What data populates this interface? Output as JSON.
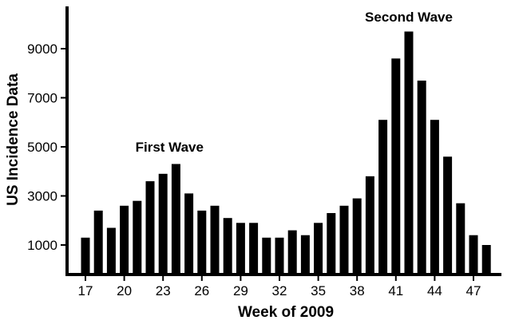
{
  "chart_data": {
    "type": "bar",
    "xlabel": "Week of 2009",
    "ylabel": "US Incidence Data",
    "x": [
      17,
      18,
      19,
      20,
      21,
      22,
      23,
      24,
      25,
      26,
      27,
      28,
      29,
      30,
      31,
      32,
      33,
      34,
      35,
      36,
      37,
      38,
      39,
      40,
      41,
      42,
      43,
      44,
      45,
      46,
      47,
      48
    ],
    "x_ticks": [
      17,
      20,
      23,
      26,
      29,
      32,
      35,
      38,
      41,
      44,
      47
    ],
    "y_ticks": [
      1000,
      3000,
      5000,
      7000,
      9000
    ],
    "ylim": [
      0,
      10600
    ],
    "values": [
      1300,
      2400,
      1700,
      2600,
      2800,
      3600,
      3900,
      4300,
      3100,
      2400,
      2600,
      2100,
      1900,
      1900,
      1300,
      1300,
      1600,
      1400,
      1900,
      2300,
      2600,
      2900,
      3800,
      6100,
      8600,
      9700,
      7700,
      6100,
      4600,
      2700,
      1400,
      1000
    ],
    "annotations": [
      {
        "text": "First Wave",
        "x": 23.5,
        "y": 5000
      },
      {
        "text": "Second Wave",
        "x": 42,
        "y": 10300
      }
    ],
    "bar_color": "#000000",
    "grid": false,
    "legend": "none"
  }
}
